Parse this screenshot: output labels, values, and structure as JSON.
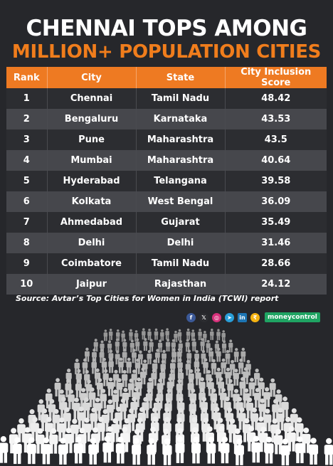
{
  "title": {
    "line1": "CHENNAI TOPS AMONG",
    "line2": "MILLION+ POPULATION CITIES"
  },
  "colors": {
    "accent": "#f07d1c",
    "header_bg": "#ee7a22",
    "background": "#26272b",
    "row_dark": "#2c2d31",
    "row_light": "#46474c",
    "brand": "#1fa463"
  },
  "chart_data": {
    "type": "table",
    "columns": [
      "Rank",
      "City",
      "State",
      "City Inclusion Score"
    ],
    "rows": [
      [
        "1",
        "Chennai",
        "Tamil Nadu",
        "48.42"
      ],
      [
        "2",
        "Bengaluru",
        "Karnataka",
        "43.53"
      ],
      [
        "3",
        "Pune",
        "Maharashtra",
        "43.5"
      ],
      [
        "4",
        "Mumbai",
        "Maharashtra",
        "40.64"
      ],
      [
        "5",
        "Hyderabad",
        "Telangana",
        "39.58"
      ],
      [
        "6",
        "Kolkata",
        "West Bengal",
        "36.09"
      ],
      [
        "7",
        "Ahmedabad",
        "Gujarat",
        "35.49"
      ],
      [
        "8",
        "Delhi",
        "Delhi",
        "31.46"
      ],
      [
        "9",
        "Coimbatore",
        "Tamil Nadu",
        "28.66"
      ],
      [
        "10",
        "Jaipur",
        "Rajasthan",
        "24.12"
      ]
    ]
  },
  "source": "Source: Avtar’s Top Cities for Women in India (TCWI) report",
  "social": {
    "icons": [
      "facebook-icon",
      "x-icon",
      "instagram-icon",
      "telegram-icon",
      "linkedin-icon",
      "moneycontrol-logo-icon"
    ],
    "brand": "moneycontrol"
  },
  "illustration": "crowd-of-people-icon"
}
